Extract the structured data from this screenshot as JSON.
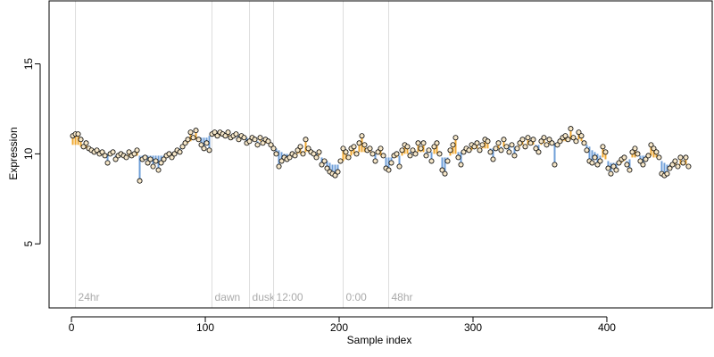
{
  "chart_data": {
    "type": "scatter",
    "x_label": "Sample index",
    "y_label": "Expression",
    "xlim": [
      -16.7,
      478.7
    ],
    "ylim": [
      1.44,
      18.5
    ],
    "xticks": [
      0,
      100,
      200,
      300,
      400
    ],
    "yticks": [
      5,
      10,
      15
    ],
    "point_color": "#f5e6c8",
    "above_color": "#f0a830",
    "below_color": "#6f9fd8",
    "marker_color": "#dddddd",
    "markers": [
      {
        "x": 3,
        "label": "24hr"
      },
      {
        "x": 105,
        "label": "dawn"
      },
      {
        "x": 133,
        "label": "dusk"
      },
      {
        "x": 151,
        "label": "12:00"
      },
      {
        "x": 203,
        "label": "0:00"
      },
      {
        "x": 237,
        "label": "48hr"
      }
    ],
    "x": [
      1,
      3,
      5,
      7,
      9,
      11,
      13,
      15,
      17,
      19,
      21,
      23,
      25,
      27,
      29,
      31,
      33,
      35,
      37,
      39,
      41,
      43,
      45,
      47,
      49,
      51,
      53,
      55,
      57,
      59,
      61,
      63,
      65,
      67,
      69,
      71,
      73,
      75,
      77,
      79,
      81,
      83,
      85,
      87,
      89,
      91,
      93,
      95,
      97,
      99,
      101,
      103,
      105,
      107,
      109,
      111,
      113,
      115,
      117,
      119,
      121,
      123,
      125,
      127,
      129,
      131,
      133,
      135,
      137,
      139,
      141,
      143,
      145,
      147,
      149,
      151,
      153,
      155,
      157,
      159,
      161,
      163,
      165,
      167,
      169,
      171,
      173,
      175,
      177,
      179,
      181,
      183,
      185,
      187,
      189,
      191,
      193,
      195,
      197,
      199,
      201,
      203,
      205,
      207,
      209,
      211,
      213,
      215,
      217,
      219,
      221,
      223,
      225,
      227,
      229,
      231,
      233,
      235,
      237,
      239,
      241,
      243,
      245,
      247,
      249,
      251,
      253,
      255,
      257,
      259,
      261,
      263,
      265,
      267,
      269,
      271,
      273,
      275,
      277,
      279,
      281,
      283,
      285,
      287,
      289,
      291,
      293,
      295,
      297,
      299,
      301,
      303,
      305,
      307,
      309,
      311,
      313,
      315,
      317,
      319,
      321,
      323,
      325,
      327,
      329,
      331,
      333,
      335,
      337,
      339,
      341,
      343,
      345,
      347,
      349,
      351,
      353,
      355,
      357,
      359,
      361,
      363,
      365,
      367,
      369,
      371,
      373,
      375,
      377,
      379,
      381,
      383,
      385,
      387,
      389,
      391,
      393,
      395,
      397,
      399,
      401,
      403,
      405,
      407,
      409,
      411,
      413,
      415,
      417,
      419,
      421,
      423,
      425,
      427,
      429,
      431,
      433,
      435,
      437,
      439,
      441,
      443,
      445,
      447,
      449,
      451,
      453,
      455,
      457,
      459,
      461
    ],
    "values": [
      11.0,
      11.1,
      11.1,
      10.8,
      10.4,
      10.6,
      10.3,
      10.2,
      10.1,
      10.2,
      10.0,
      10.1,
      9.9,
      9.5,
      10.0,
      10.1,
      9.7,
      9.9,
      10.0,
      9.9,
      9.8,
      10.1,
      9.9,
      10.0,
      10.2,
      8.5,
      9.7,
      9.8,
      9.5,
      9.7,
      9.3,
      9.6,
      9.1,
      9.5,
      9.7,
      9.9,
      10.0,
      9.8,
      10.0,
      10.2,
      10.1,
      10.4,
      10.6,
      10.8,
      11.2,
      10.9,
      11.3,
      10.8,
      10.5,
      10.3,
      10.6,
      10.2,
      11.1,
      11.2,
      11.0,
      11.2,
      11.1,
      11.0,
      11.2,
      10.9,
      11.0,
      11.1,
      10.8,
      11.0,
      10.9,
      10.6,
      10.7,
      10.9,
      10.8,
      10.5,
      10.9,
      10.6,
      10.8,
      10.7,
      10.5,
      10.3,
      10.0,
      9.3,
      9.6,
      9.8,
      9.7,
      9.8,
      10.0,
      9.9,
      10.2,
      10.4,
      10.0,
      10.8,
      10.3,
      10.1,
      10.0,
      9.8,
      10.1,
      9.4,
      9.6,
      9.2,
      9.0,
      8.9,
      8.8,
      9.0,
      9.6,
      10.3,
      10.1,
      9.8,
      10.3,
      10.4,
      10.0,
      10.6,
      11.0,
      10.5,
      10.2,
      10.3,
      10.0,
      9.6,
      10.1,
      10.3,
      9.9,
      9.2,
      9.1,
      9.5,
      9.9,
      10.0,
      9.3,
      10.2,
      10.5,
      10.4,
      9.9,
      10.2,
      10.0,
      10.6,
      10.3,
      10.6,
      9.9,
      10.2,
      9.6,
      10.4,
      10.6,
      10.0,
      9.1,
      8.9,
      9.6,
      10.2,
      10.5,
      10.9,
      9.8,
      9.4,
      10.1,
      10.3,
      10.2,
      10.5,
      10.4,
      10.6,
      10.2,
      10.5,
      10.8,
      10.7,
      10.1,
      9.7,
      10.3,
      10.6,
      10.2,
      10.8,
      10.4,
      10.1,
      10.5,
      9.9,
      10.3,
      10.6,
      10.8,
      10.4,
      10.9,
      10.6,
      10.8,
      10.3,
      10.1,
      10.7,
      10.9,
      10.5,
      10.8,
      10.6,
      9.4,
      10.5,
      10.7,
      10.9,
      11.0,
      10.8,
      11.4,
      10.9,
      10.7,
      11.2,
      11.0,
      10.6,
      10.2,
      9.6,
      9.5,
      9.8,
      9.4,
      9.6,
      10.4,
      10.1,
      9.2,
      8.9,
      9.3,
      9.1,
      9.5,
      9.7,
      9.8,
      9.4,
      9.1,
      10.1,
      10.3,
      10.0,
      9.6,
      9.4,
      9.7,
      9.9,
      10.5,
      10.3,
      10.1,
      9.8,
      8.9,
      8.8,
      8.9,
      9.2,
      9.4,
      9.6,
      9.3,
      9.8,
      9.5,
      9.8,
      9.3
    ],
    "trend": [
      10.5,
      10.5,
      10.5,
      10.4,
      10.3,
      10.3,
      10.2,
      10.2,
      10.1,
      10.1,
      10.1,
      10.0,
      10.0,
      10.0,
      10.0,
      10.0,
      9.9,
      9.9,
      9.9,
      9.9,
      9.9,
      9.9,
      9.9,
      9.9,
      9.9,
      9.9,
      9.9,
      9.9,
      9.9,
      9.9,
      9.9,
      9.9,
      9.9,
      9.9,
      9.9,
      10.0,
      10.0,
      10.0,
      10.1,
      10.2,
      10.3,
      10.4,
      10.5,
      10.6,
      10.7,
      10.8,
      10.8,
      10.9,
      10.9,
      10.9,
      10.9,
      11.0,
      11.0,
      11.0,
      11.0,
      11.0,
      11.0,
      11.0,
      11.0,
      11.0,
      11.0,
      11.0,
      11.0,
      10.9,
      10.9,
      10.9,
      10.8,
      10.8,
      10.8,
      10.7,
      10.7,
      10.7,
      10.6,
      10.6,
      10.5,
      10.4,
      10.3,
      10.2,
      10.1,
      10.0,
      10.0,
      9.9,
      9.9,
      9.9,
      10.0,
      10.0,
      10.1,
      10.1,
      10.1,
      10.1,
      10.0,
      10.0,
      9.9,
      9.8,
      9.7,
      9.6,
      9.5,
      9.4,
      9.4,
      9.4,
      9.5,
      9.6,
      9.7,
      9.8,
      9.9,
      10.0,
      10.1,
      10.1,
      10.1,
      10.1,
      10.1,
      10.1,
      10.0,
      10.0,
      10.0,
      9.9,
      9.8,
      9.8,
      9.8,
      9.8,
      9.8,
      9.8,
      9.9,
      9.9,
      10.0,
      10.0,
      10.1,
      10.1,
      10.1,
      10.1,
      10.1,
      10.1,
      10.1,
      10.1,
      10.1,
      10.0,
      10.0,
      9.9,
      9.8,
      9.8,
      9.8,
      9.9,
      10.0,
      10.0,
      10.1,
      10.1,
      10.1,
      10.2,
      10.2,
      10.2,
      10.3,
      10.3,
      10.3,
      10.3,
      10.3,
      10.3,
      10.3,
      10.3,
      10.3,
      10.3,
      10.4,
      10.4,
      10.4,
      10.4,
      10.4,
      10.4,
      10.4,
      10.4,
      10.5,
      10.5,
      10.5,
      10.5,
      10.5,
      10.5,
      10.5,
      10.5,
      10.6,
      10.6,
      10.6,
      10.6,
      10.6,
      10.6,
      10.7,
      10.7,
      10.7,
      10.8,
      10.8,
      10.8,
      10.8,
      10.8,
      10.7,
      10.6,
      10.5,
      10.4,
      10.2,
      10.1,
      10.0,
      9.9,
      9.8,
      9.7,
      9.6,
      9.5,
      9.5,
      9.5,
      9.5,
      9.5,
      9.6,
      9.6,
      9.7,
      9.8,
      9.8,
      9.9,
      9.9,
      9.9,
      9.9,
      9.9,
      9.9,
      9.8,
      9.8,
      9.7,
      9.6,
      9.5,
      9.4,
      9.4,
      9.4,
      9.4,
      9.4,
      9.4,
      9.4,
      9.4,
      9.4
    ]
  }
}
